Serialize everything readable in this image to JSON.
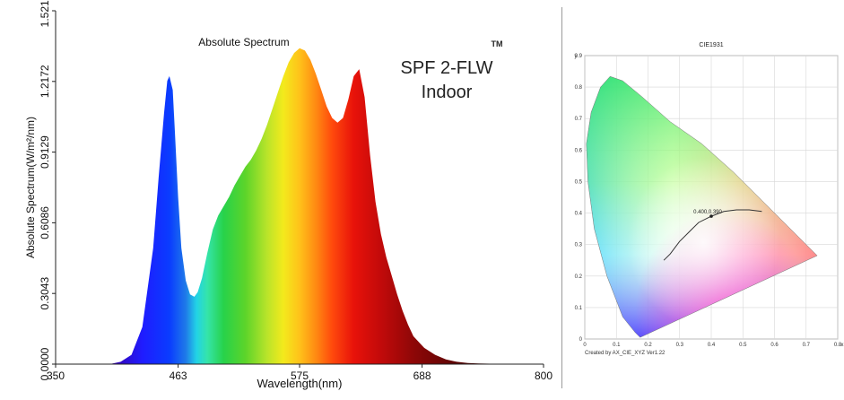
{
  "chart_data": [
    {
      "type": "area",
      "title": "Absolute Spectrum",
      "product_label": "SPF 2-FLW",
      "product_trademark": "TM",
      "product_sublabel": "Indoor",
      "xlabel": "Wavelength(nm)",
      "ylabel": "Absolute Spectrum(W/m²/nm)",
      "xlim": [
        350,
        800
      ],
      "ylim": [
        0,
        1.5215
      ],
      "x_ticks": [
        "350",
        "463",
        "575",
        "688",
        "800"
      ],
      "x_tick_values": [
        350,
        463,
        575,
        688,
        800
      ],
      "y_ticks": [
        "0.0000",
        "0.3043",
        "0.6086",
        "0.9129",
        "1.2172",
        "1.5215"
      ],
      "y_tick_values": [
        0,
        0.3043,
        0.6086,
        0.9129,
        1.2172,
        1.5215
      ],
      "grid": false,
      "fill": "wavelength-rainbow",
      "x": [
        400,
        410,
        420,
        430,
        440,
        445,
        450,
        453,
        455,
        458,
        460,
        463,
        466,
        470,
        474,
        478,
        481,
        485,
        490,
        495,
        500,
        505,
        510,
        515,
        520,
        525,
        530,
        535,
        540,
        545,
        550,
        555,
        560,
        565,
        570,
        575,
        580,
        585,
        590,
        595,
        600,
        605,
        610,
        615,
        620,
        625,
        630,
        635,
        640,
        645,
        650,
        655,
        660,
        665,
        670,
        675,
        680,
        690,
        700,
        710,
        720,
        730,
        740,
        750,
        760,
        780,
        800
      ],
      "values": [
        0.0,
        0.01,
        0.04,
        0.16,
        0.5,
        0.8,
        1.08,
        1.22,
        1.24,
        1.18,
        1.0,
        0.72,
        0.5,
        0.36,
        0.3,
        0.29,
        0.31,
        0.37,
        0.48,
        0.58,
        0.64,
        0.68,
        0.72,
        0.77,
        0.81,
        0.85,
        0.88,
        0.92,
        0.97,
        1.03,
        1.1,
        1.17,
        1.24,
        1.3,
        1.34,
        1.36,
        1.35,
        1.31,
        1.25,
        1.18,
        1.11,
        1.06,
        1.04,
        1.06,
        1.14,
        1.24,
        1.27,
        1.15,
        0.9,
        0.7,
        0.56,
        0.46,
        0.38,
        0.3,
        0.23,
        0.17,
        0.12,
        0.07,
        0.04,
        0.02,
        0.01,
        0.005,
        0.003,
        0.002,
        0.001,
        0.0,
        0.0
      ]
    },
    {
      "type": "scatter",
      "title": "CIE1931",
      "xlabel": "x",
      "ylabel": "y",
      "xlim": [
        0,
        0.8
      ],
      "ylim": [
        0,
        0.9
      ],
      "x_ticks": [
        "0",
        "0.1",
        "0.2",
        "0.3",
        "0.4",
        "0.5",
        "0.6",
        "0.7",
        "0.8"
      ],
      "x_tick_values": [
        0,
        0.1,
        0.2,
        0.3,
        0.4,
        0.5,
        0.6,
        0.7,
        0.8
      ],
      "y_ticks": [
        "0",
        "0.1",
        "0.2",
        "0.3",
        "0.4",
        "0.5",
        "0.6",
        "0.7",
        "0.8",
        "0.9"
      ],
      "y_tick_values": [
        0,
        0.1,
        0.2,
        0.3,
        0.4,
        0.5,
        0.6,
        0.7,
        0.8,
        0.9
      ],
      "grid": true,
      "point": {
        "x": 0.4,
        "y": 0.39,
        "label": "0.400,0.390"
      },
      "planckian_locus": {
        "x": [
          0.25,
          0.27,
          0.3,
          0.33,
          0.36,
          0.4,
          0.44,
          0.48,
          0.52,
          0.56
        ],
        "y": [
          0.25,
          0.27,
          0.31,
          0.34,
          0.37,
          0.39,
          0.405,
          0.41,
          0.41,
          0.405
        ]
      },
      "gamut": {
        "x": [
          0.175,
          0.16,
          0.12,
          0.07,
          0.03,
          0.01,
          0.005,
          0.02,
          0.05,
          0.08,
          0.12,
          0.18,
          0.27,
          0.37,
          0.47,
          0.56,
          0.64,
          0.7,
          0.735,
          0.175
        ],
        "y": [
          0.005,
          0.02,
          0.07,
          0.2,
          0.35,
          0.5,
          0.62,
          0.72,
          0.8,
          0.834,
          0.82,
          0.77,
          0.69,
          0.62,
          0.53,
          0.44,
          0.36,
          0.3,
          0.265,
          0.005
        ]
      },
      "footer": "Created by AX_CIE_XYZ Ver1.22"
    }
  ]
}
